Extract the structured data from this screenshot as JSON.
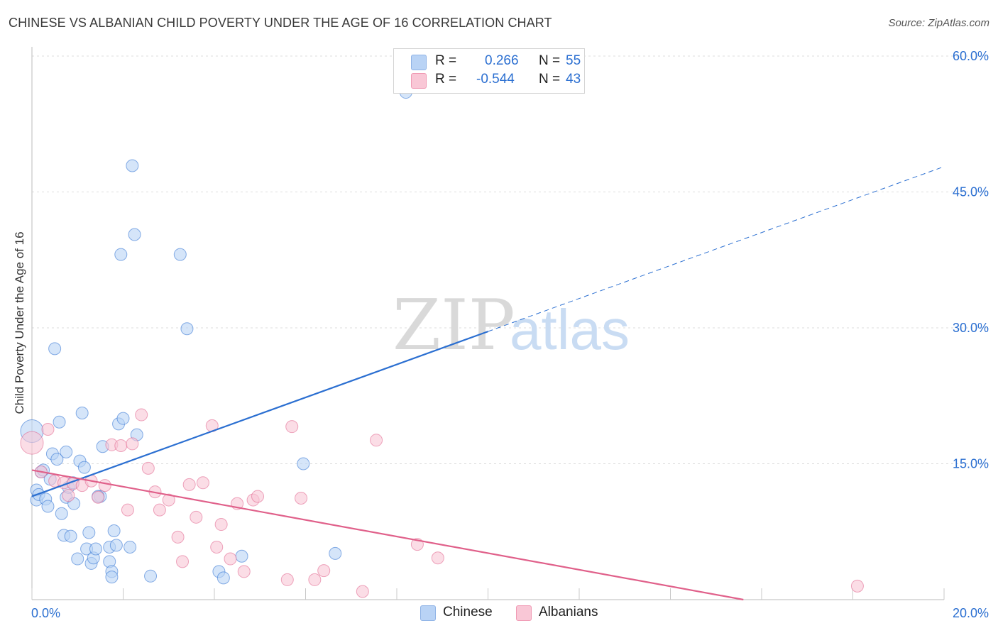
{
  "chart_data": {
    "type": "scatter",
    "title": "CHINESE VS ALBANIAN CHILD POVERTY UNDER THE AGE OF 16 CORRELATION CHART",
    "source": "Source: ZipAtlas.com",
    "ylabel": "Child Poverty Under the Age of 16",
    "xlim": [
      0,
      20
    ],
    "ylim": [
      0,
      60
    ],
    "x_tick_labels": [
      "0.0%",
      "20.0%"
    ],
    "y_tick_values": [
      15,
      30,
      45,
      60
    ],
    "y_tick_labels": [
      "15.0%",
      "30.0%",
      "45.0%",
      "60.0%"
    ],
    "watermark": {
      "zip": "ZIP",
      "atlas": "atlas"
    },
    "legend": [
      {
        "name": "Chinese",
        "r_label": "R =",
        "r_value": "0.266",
        "n_label": "N =",
        "n_value": "55",
        "color": "#2b6fd1",
        "fill": "#b9d3f5"
      },
      {
        "name": "Albanians",
        "r_label": "R =",
        "r_value": "-0.544",
        "n_label": "N =",
        "n_value": "43",
        "color": "#e0608a",
        "fill": "#f9c7d6"
      }
    ],
    "series": [
      {
        "name": "Chinese",
        "color": "#2b6fd1",
        "fill": "#b9d3f5",
        "trend": {
          "x0": 0,
          "y0": 11.4,
          "x1": 10,
          "y1": 29.6,
          "dash_to_x": 20,
          "dash_to_y": 47.8
        },
        "points": [
          [
            0.0,
            18.6
          ],
          [
            0.1,
            12.1
          ],
          [
            0.1,
            11.0
          ],
          [
            0.15,
            11.6
          ],
          [
            0.2,
            14.1
          ],
          [
            0.25,
            14.3
          ],
          [
            0.3,
            11.1
          ],
          [
            0.35,
            10.3
          ],
          [
            0.4,
            13.3
          ],
          [
            0.45,
            16.1
          ],
          [
            0.5,
            27.7
          ],
          [
            0.55,
            15.5
          ],
          [
            0.6,
            19.6
          ],
          [
            0.65,
            9.5
          ],
          [
            0.7,
            7.1
          ],
          [
            0.75,
            11.3
          ],
          [
            0.75,
            16.3
          ],
          [
            0.8,
            12.4
          ],
          [
            0.85,
            7.0
          ],
          [
            0.9,
            12.9
          ],
          [
            0.92,
            10.6
          ],
          [
            1.0,
            4.5
          ],
          [
            1.05,
            15.3
          ],
          [
            1.1,
            20.6
          ],
          [
            1.15,
            14.6
          ],
          [
            1.2,
            5.6
          ],
          [
            1.25,
            7.4
          ],
          [
            1.3,
            4.0
          ],
          [
            1.35,
            4.6
          ],
          [
            1.4,
            5.6
          ],
          [
            1.5,
            11.4
          ],
          [
            1.55,
            16.9
          ],
          [
            1.7,
            5.8
          ],
          [
            1.7,
            4.2
          ],
          [
            1.75,
            3.1
          ],
          [
            1.75,
            2.5
          ],
          [
            1.8,
            7.6
          ],
          [
            1.85,
            6.0
          ],
          [
            1.9,
            19.4
          ],
          [
            1.95,
            38.1
          ],
          [
            2.0,
            20.0
          ],
          [
            2.15,
            5.8
          ],
          [
            2.2,
            47.9
          ],
          [
            2.25,
            40.3
          ],
          [
            2.3,
            18.2
          ],
          [
            2.6,
            2.6
          ],
          [
            3.25,
            38.1
          ],
          [
            3.4,
            29.9
          ],
          [
            4.1,
            3.1
          ],
          [
            4.2,
            2.4
          ],
          [
            4.6,
            4.8
          ],
          [
            5.95,
            15.0
          ],
          [
            6.65,
            5.1
          ],
          [
            8.2,
            56.0
          ],
          [
            1.45,
            11.4
          ]
        ]
      },
      {
        "name": "Albanians",
        "color": "#e0608a",
        "fill": "#f9c7d6",
        "trend": {
          "x0": 0,
          "y0": 14.3,
          "x1": 15.6,
          "y1": 0
        },
        "points": [
          [
            0.0,
            17.3
          ],
          [
            0.2,
            14.1
          ],
          [
            0.35,
            18.8
          ],
          [
            0.5,
            13.1
          ],
          [
            0.7,
            12.9
          ],
          [
            0.8,
            11.5
          ],
          [
            0.9,
            12.8
          ],
          [
            1.1,
            12.6
          ],
          [
            1.3,
            13.1
          ],
          [
            1.45,
            11.3
          ],
          [
            1.6,
            12.6
          ],
          [
            1.75,
            17.1
          ],
          [
            1.95,
            17.0
          ],
          [
            2.1,
            9.9
          ],
          [
            2.2,
            17.2
          ],
          [
            2.4,
            20.4
          ],
          [
            2.55,
            14.5
          ],
          [
            2.7,
            11.9
          ],
          [
            2.8,
            9.9
          ],
          [
            3.0,
            11.0
          ],
          [
            3.2,
            6.9
          ],
          [
            3.3,
            4.2
          ],
          [
            3.45,
            12.7
          ],
          [
            3.6,
            9.1
          ],
          [
            3.75,
            12.9
          ],
          [
            3.95,
            19.2
          ],
          [
            4.05,
            5.8
          ],
          [
            4.15,
            8.3
          ],
          [
            4.35,
            4.5
          ],
          [
            4.5,
            10.6
          ],
          [
            4.65,
            3.1
          ],
          [
            4.85,
            11.0
          ],
          [
            4.95,
            11.4
          ],
          [
            5.6,
            2.2
          ],
          [
            5.7,
            19.1
          ],
          [
            5.9,
            11.2
          ],
          [
            6.2,
            2.2
          ],
          [
            6.4,
            3.2
          ],
          [
            7.25,
            0.9
          ],
          [
            7.55,
            17.6
          ],
          [
            8.45,
            6.1
          ],
          [
            8.9,
            4.6
          ],
          [
            18.1,
            1.5
          ]
        ]
      }
    ]
  }
}
